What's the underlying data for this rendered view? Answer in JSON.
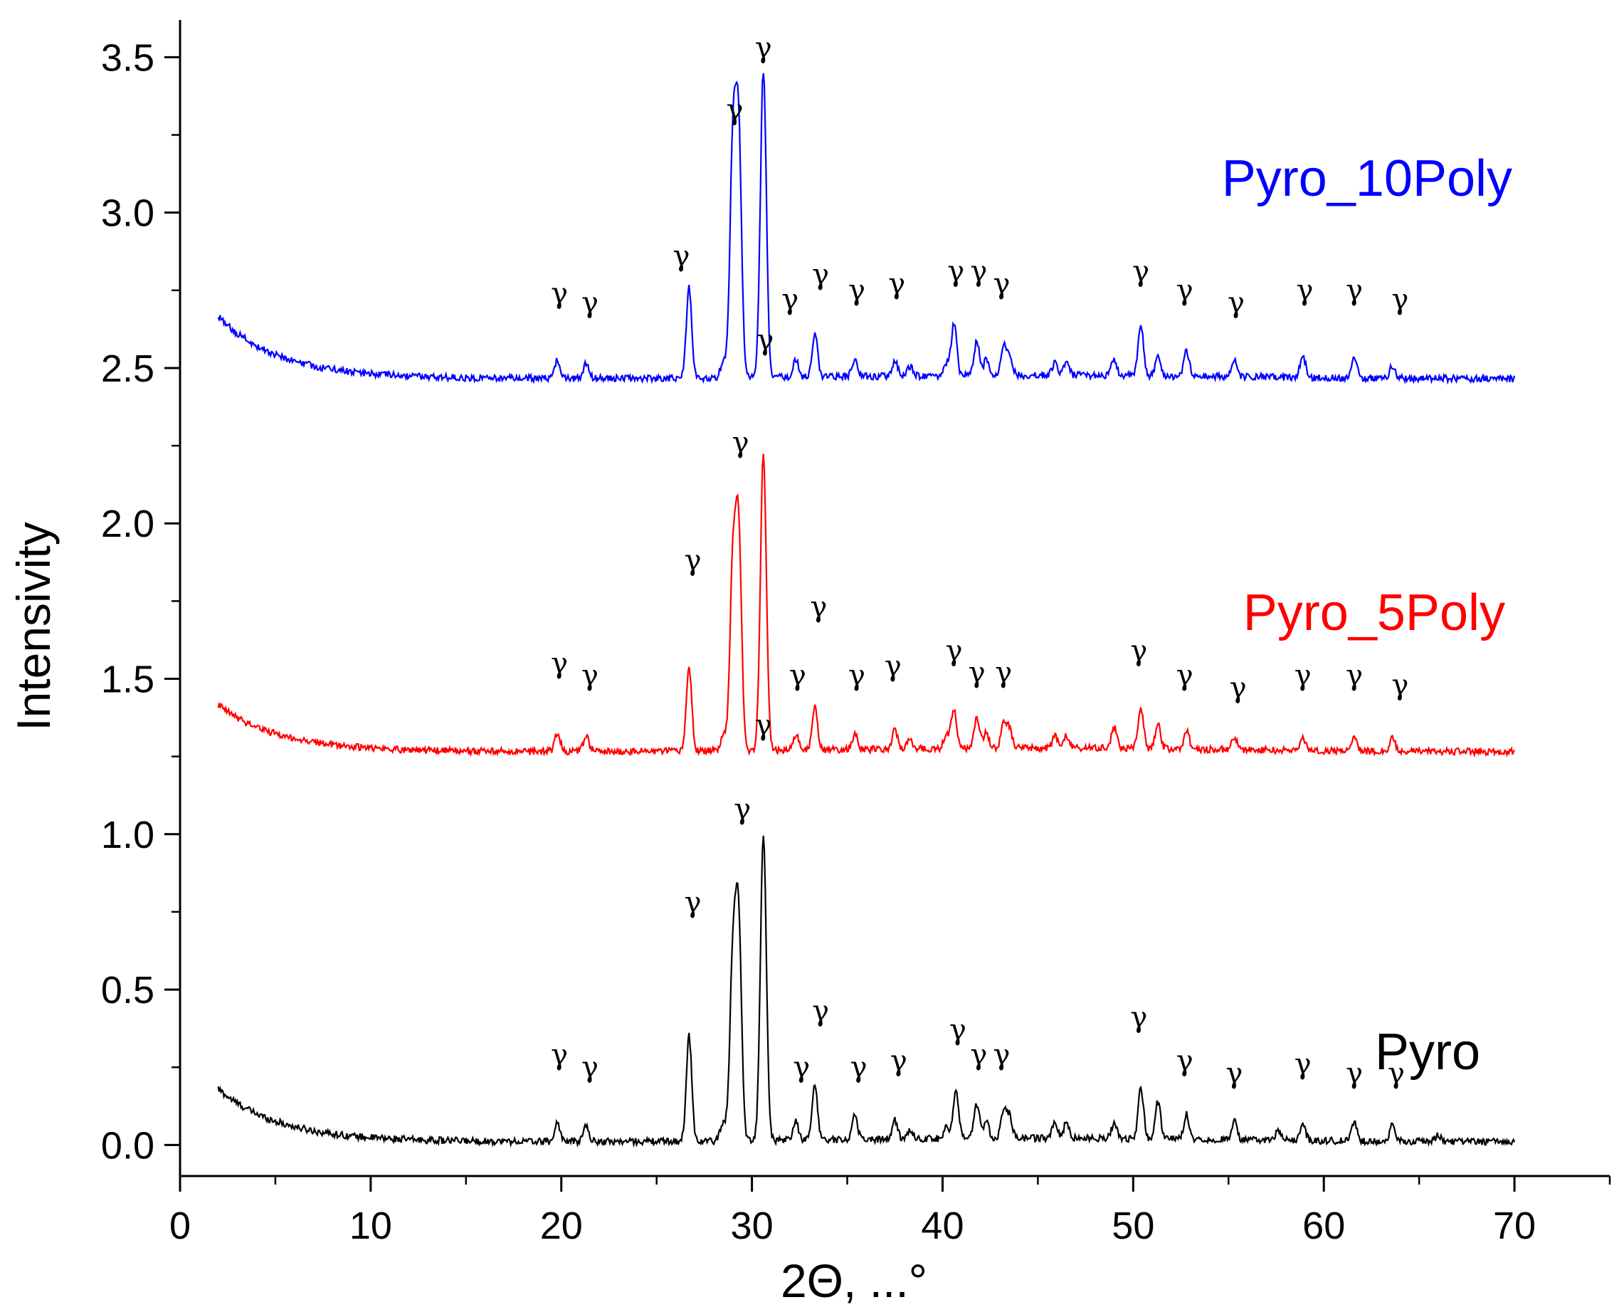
{
  "chart_data": {
    "type": "line",
    "title": "",
    "xlabel": "2Θ, ...°",
    "ylabel": "Intensivity",
    "xlim": [
      0,
      75
    ],
    "ylim": [
      -0.1,
      3.62
    ],
    "xticks": [
      0,
      10,
      20,
      30,
      40,
      50,
      60,
      70
    ],
    "xtick_labels": [
      "0",
      "10",
      "20",
      "30",
      "40",
      "50",
      "60",
      "70"
    ],
    "yticks": [
      0.0,
      0.5,
      1.0,
      1.5,
      2.0,
      2.5,
      3.0,
      3.5
    ],
    "ytick_labels": [
      "0.0",
      "0.5",
      "1.0",
      "1.5",
      "2.0",
      "2.5",
      "3.0",
      "3.5"
    ],
    "grid": false,
    "peak_marker": "γ",
    "x_range": [
      2,
      70
    ],
    "series": [
      {
        "name": "Pyro",
        "label": "Pyro",
        "color": "#000000",
        "baseline": 0.01,
        "low_angle_rise": 0.17,
        "peaks": [
          [
            19.8,
            0.06
          ],
          [
            21.3,
            0.05
          ],
          [
            26.7,
            0.34
          ],
          [
            28.5,
            0.06
          ],
          [
            29.0,
            0.58
          ],
          [
            29.3,
            0.7
          ],
          [
            30.6,
            0.98
          ],
          [
            32.3,
            0.06
          ],
          [
            33.3,
            0.18
          ],
          [
            35.4,
            0.08
          ],
          [
            37.5,
            0.06
          ],
          [
            38.3,
            0.03
          ],
          [
            40.2,
            0.04
          ],
          [
            40.7,
            0.15
          ],
          [
            41.8,
            0.11
          ],
          [
            42.3,
            0.05
          ],
          [
            43.2,
            0.09
          ],
          [
            43.5,
            0.07
          ],
          [
            45.9,
            0.05
          ],
          [
            46.5,
            0.05
          ],
          [
            49.0,
            0.05
          ],
          [
            50.4,
            0.16
          ],
          [
            51.3,
            0.12
          ],
          [
            52.8,
            0.08
          ],
          [
            55.3,
            0.06
          ],
          [
            57.6,
            0.03
          ],
          [
            58.9,
            0.05
          ],
          [
            61.6,
            0.06
          ],
          [
            63.6,
            0.05
          ],
          [
            66.0,
            0.02
          ]
        ],
        "gamma_positions": [
          [
            19.9,
            0.26
          ],
          [
            21.5,
            0.22
          ],
          [
            26.9,
            0.75
          ],
          [
            29.5,
            1.05
          ],
          [
            30.6,
            1.32
          ],
          [
            32.6,
            0.22
          ],
          [
            33.6,
            0.4
          ],
          [
            35.6,
            0.22
          ],
          [
            37.7,
            0.24
          ],
          [
            40.8,
            0.34
          ],
          [
            41.9,
            0.26
          ],
          [
            43.1,
            0.26
          ],
          [
            50.3,
            0.38
          ],
          [
            52.7,
            0.24
          ],
          [
            55.3,
            0.2
          ],
          [
            58.9,
            0.23
          ],
          [
            61.6,
            0.2
          ],
          [
            63.8,
            0.2
          ]
        ]
      },
      {
        "name": "Pyro_5Poly",
        "label": "Pyro_5Poly",
        "color": "#ff0000",
        "baseline": 1.265,
        "low_angle_rise": 0.15,
        "peaks": [
          [
            19.8,
            0.06
          ],
          [
            21.3,
            0.05
          ],
          [
            26.7,
            0.27
          ],
          [
            28.5,
            0.05
          ],
          [
            29.0,
            0.58
          ],
          [
            29.3,
            0.7
          ],
          [
            30.6,
            0.96
          ],
          [
            32.3,
            0.05
          ],
          [
            33.3,
            0.14
          ],
          [
            35.4,
            0.05
          ],
          [
            37.5,
            0.06
          ],
          [
            38.3,
            0.03
          ],
          [
            40.2,
            0.04
          ],
          [
            40.6,
            0.13
          ],
          [
            41.8,
            0.1
          ],
          [
            42.3,
            0.05
          ],
          [
            43.2,
            0.08
          ],
          [
            43.5,
            0.06
          ],
          [
            45.9,
            0.04
          ],
          [
            46.5,
            0.04
          ],
          [
            49.0,
            0.07
          ],
          [
            50.4,
            0.13
          ],
          [
            51.3,
            0.08
          ],
          [
            52.8,
            0.06
          ],
          [
            55.3,
            0.04
          ],
          [
            58.9,
            0.04
          ],
          [
            61.6,
            0.05
          ],
          [
            63.6,
            0.04
          ]
        ],
        "gamma_positions": [
          [
            19.9,
            1.52
          ],
          [
            21.5,
            1.48
          ],
          [
            26.9,
            1.85
          ],
          [
            29.4,
            2.23
          ],
          [
            30.7,
            2.56
          ],
          [
            32.4,
            1.48
          ],
          [
            33.5,
            1.7
          ],
          [
            35.5,
            1.48
          ],
          [
            37.4,
            1.51
          ],
          [
            40.6,
            1.56
          ],
          [
            41.8,
            1.49
          ],
          [
            43.2,
            1.49
          ],
          [
            50.3,
            1.56
          ],
          [
            52.7,
            1.48
          ],
          [
            55.5,
            1.44
          ],
          [
            58.9,
            1.48
          ],
          [
            61.6,
            1.48
          ],
          [
            64.0,
            1.45
          ]
        ]
      },
      {
        "name": "Pyro_10Poly",
        "label": "Pyro_10Poly",
        "color": "#0000ff",
        "baseline": 2.465,
        "low_angle_rise": 0.2,
        "peaks": [
          [
            19.8,
            0.06
          ],
          [
            21.3,
            0.05
          ],
          [
            26.7,
            0.29
          ],
          [
            28.5,
            0.05
          ],
          [
            29.0,
            0.73
          ],
          [
            29.3,
            0.78
          ],
          [
            30.6,
            0.99
          ],
          [
            32.3,
            0.06
          ],
          [
            33.3,
            0.14
          ],
          [
            35.4,
            0.06
          ],
          [
            37.5,
            0.05
          ],
          [
            38.3,
            0.03
          ],
          [
            40.2,
            0.04
          ],
          [
            40.6,
            0.17
          ],
          [
            41.8,
            0.11
          ],
          [
            42.3,
            0.05
          ],
          [
            43.2,
            0.09
          ],
          [
            43.5,
            0.07
          ],
          [
            45.9,
            0.04
          ],
          [
            46.5,
            0.04
          ],
          [
            49.0,
            0.05
          ],
          [
            50.4,
            0.16
          ],
          [
            51.3,
            0.06
          ],
          [
            52.8,
            0.08
          ],
          [
            55.3,
            0.05
          ],
          [
            58.9,
            0.07
          ],
          [
            61.6,
            0.07
          ],
          [
            63.6,
            0.04
          ]
        ],
        "gamma_positions": [
          [
            19.9,
            2.71
          ],
          [
            21.5,
            2.68
          ],
          [
            26.3,
            2.83
          ],
          [
            29.1,
            3.3
          ],
          [
            30.6,
            3.5
          ],
          [
            32.0,
            2.69
          ],
          [
            33.6,
            2.77
          ],
          [
            35.5,
            2.72
          ],
          [
            37.6,
            2.74
          ],
          [
            40.7,
            2.78
          ],
          [
            41.9,
            2.78
          ],
          [
            43.1,
            2.74
          ],
          [
            50.4,
            2.78
          ],
          [
            52.7,
            2.72
          ],
          [
            55.4,
            2.68
          ],
          [
            59.0,
            2.72
          ],
          [
            61.6,
            2.72
          ],
          [
            64.0,
            2.69
          ]
        ]
      }
    ]
  }
}
